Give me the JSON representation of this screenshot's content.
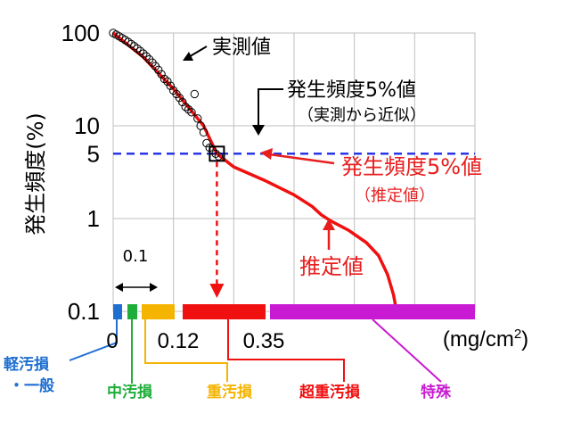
{
  "chart_data": {
    "type": "line",
    "y_scale": "log",
    "ylabel": "発生頻度(%)",
    "y_ticks": [
      "100",
      "10",
      "5",
      "1",
      "0.1"
    ],
    "x_unit": "(mg/cm2)",
    "x_tick_labels": [
      "0",
      "0.12",
      "0.35"
    ],
    "bracket_label": "0.1",
    "series": [
      {
        "name": "実測値",
        "marker": "circle",
        "points": [
          [
            0.0,
            100
          ],
          [
            0.005,
            96
          ],
          [
            0.01,
            92
          ],
          [
            0.015,
            88
          ],
          [
            0.02,
            84
          ],
          [
            0.025,
            80
          ],
          [
            0.03,
            76
          ],
          [
            0.035,
            72
          ],
          [
            0.04,
            68
          ],
          [
            0.045,
            64
          ],
          [
            0.05,
            60
          ],
          [
            0.055,
            56
          ],
          [
            0.06,
            52
          ],
          [
            0.065,
            48
          ],
          [
            0.07,
            44
          ],
          [
            0.075,
            40
          ],
          [
            0.08,
            36
          ],
          [
            0.085,
            32
          ],
          [
            0.09,
            30
          ],
          [
            0.095,
            27
          ],
          [
            0.1,
            24
          ],
          [
            0.105,
            22
          ],
          [
            0.11,
            20
          ],
          [
            0.115,
            18
          ],
          [
            0.12,
            16
          ],
          [
            0.125,
            15
          ],
          [
            0.13,
            14
          ],
          [
            0.135,
            22
          ],
          [
            0.14,
            12
          ],
          [
            0.145,
            10
          ],
          [
            0.15,
            8.5
          ],
          [
            0.155,
            6.5
          ],
          [
            0.16,
            5.8
          ],
          [
            0.165,
            5.4
          ],
          [
            0.17,
            5.0
          ],
          [
            0.175,
            4.7
          ]
        ]
      },
      {
        "name": "推定値",
        "points": [
          [
            0.0,
            100
          ],
          [
            0.05,
            55
          ],
          [
            0.1,
            25
          ],
          [
            0.15,
            10
          ],
          [
            0.172,
            5.0
          ],
          [
            0.2,
            3.6
          ],
          [
            0.25,
            2.6
          ],
          [
            0.3,
            1.8
          ],
          [
            0.33,
            1.35
          ],
          [
            0.345,
            1.1
          ],
          [
            0.36,
            0.95
          ],
          [
            0.39,
            0.75
          ],
          [
            0.42,
            0.55
          ],
          [
            0.44,
            0.4
          ],
          [
            0.455,
            0.25
          ],
          [
            0.465,
            0.15
          ],
          [
            0.47,
            0.1
          ]
        ]
      }
    ],
    "reference_line": {
      "y": 5,
      "style": "dashed",
      "color": "#2a35e8"
    },
    "point_marker": {
      "x": 0.172,
      "y": 5
    },
    "annotations": [
      {
        "text": "実測値",
        "color": "#000000"
      },
      {
        "text": "発生頻度5%値",
        "subtext": "（実測から近似）",
        "color": "#000000"
      },
      {
        "text": "発生頻度5%値",
        "subtext": "（推定値）",
        "color": "#e81e1e"
      },
      {
        "text": "推定値",
        "color": "#e81e1e"
      }
    ],
    "categories": [
      {
        "name": "軽汚損\n・一般",
        "color": "#1f6fd1",
        "range": [
          0.0,
          0.02
        ]
      },
      {
        "name": "中汚損",
        "color": "#1fae3a",
        "range": [
          0.02,
          0.045
        ]
      },
      {
        "name": "重汚損",
        "color": "#f5b400",
        "range": [
          0.045,
          0.12
        ]
      },
      {
        "name": "超重汚損",
        "color": "#f01010",
        "range": [
          0.12,
          0.35
        ]
      },
      {
        "name": "特殊",
        "color": "#c81ad2",
        "range": [
          0.35,
          0.6
        ]
      }
    ],
    "grid": true
  }
}
